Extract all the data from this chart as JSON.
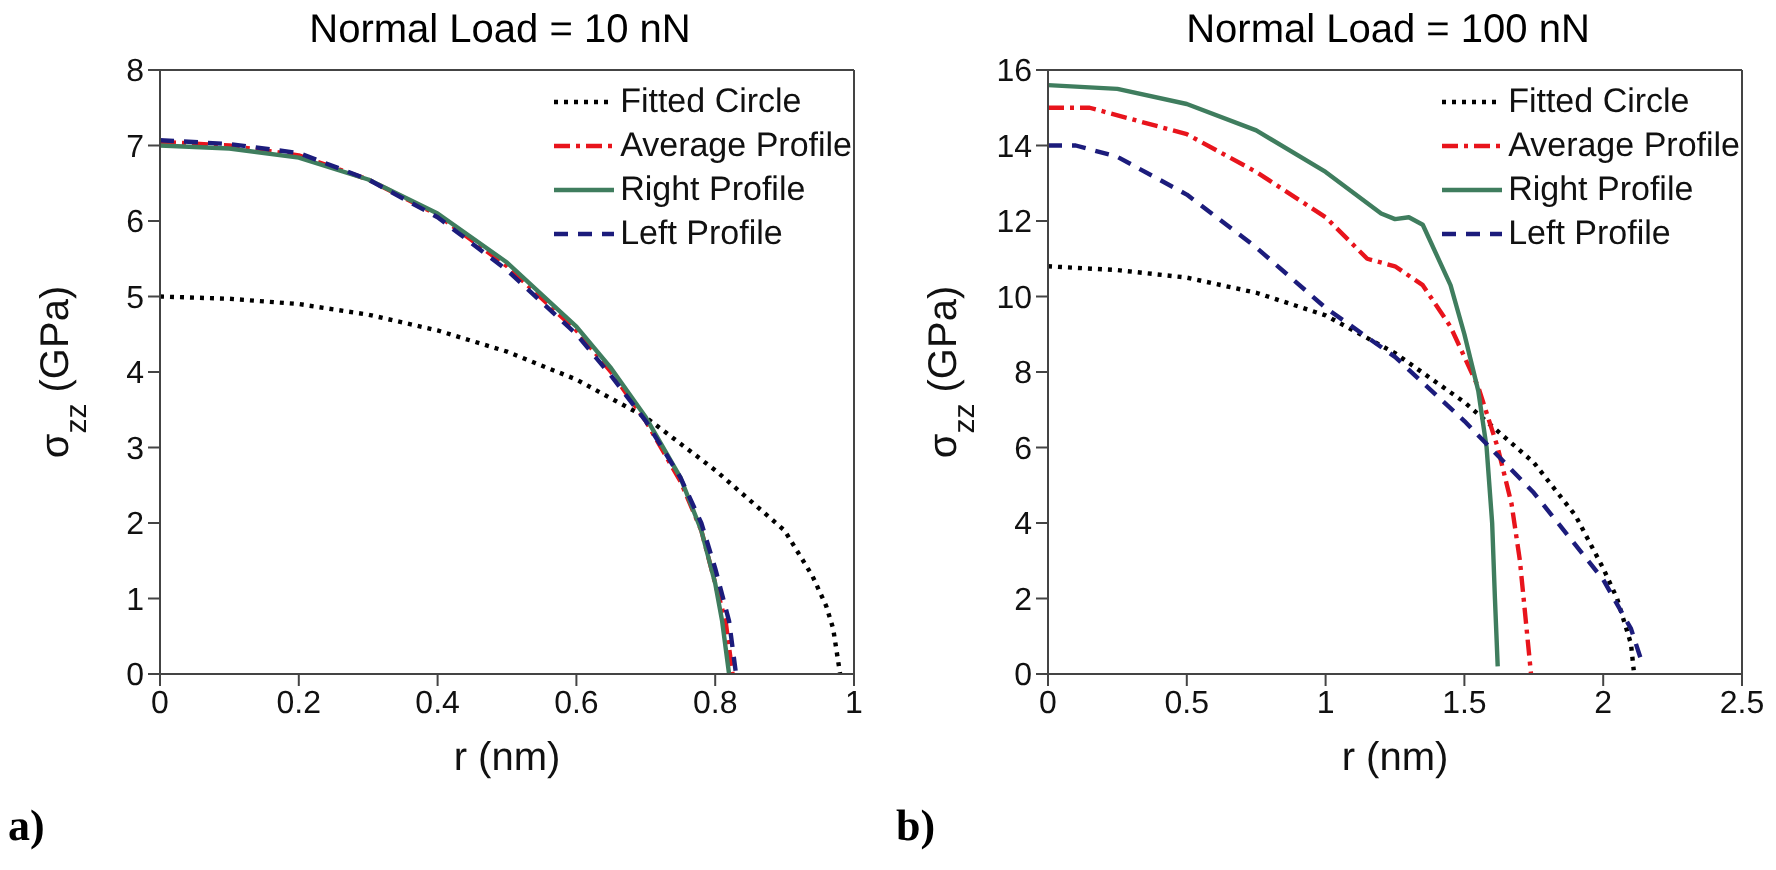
{
  "chart_data": [
    {
      "type": "line",
      "title": "Normal Load = 10 nN",
      "xlabel": "r (nm)",
      "ylabel": "σ$_{zz}$ (GPa)",
      "xlim": [
        0,
        1
      ],
      "xticks": [
        0,
        0.2,
        0.4,
        0.6,
        0.8,
        1
      ],
      "ylim": [
        0,
        8
      ],
      "yticks": [
        0,
        1,
        2,
        3,
        4,
        5,
        6,
        7,
        8
      ],
      "legend": "top right",
      "marker": "none",
      "annotations": [
        "a)"
      ],
      "series": [
        {
          "name": "Fitted Circle",
          "color": "#000000",
          "line_style": "dotted",
          "x": [
            0,
            0.1,
            0.2,
            0.3,
            0.4,
            0.5,
            0.6,
            0.7,
            0.8,
            0.85,
            0.9,
            0.94,
            0.96,
            0.97,
            0.98
          ],
          "values": [
            5,
            4.97,
            4.9,
            4.76,
            4.55,
            4.27,
            3.9,
            3.4,
            2.7,
            2.3,
            1.9,
            1.3,
            0.9,
            0.6,
            0
          ]
        },
        {
          "name": "Average Profile",
          "color": "#e8141c",
          "line_style": "dashdot",
          "x": [
            0,
            0.1,
            0.2,
            0.3,
            0.4,
            0.5,
            0.6,
            0.65,
            0.7,
            0.75,
            0.78,
            0.8,
            0.815,
            0.825
          ],
          "values": [
            7.05,
            7,
            6.87,
            6.55,
            6.08,
            5.4,
            4.55,
            4.0,
            3.35,
            2.55,
            1.9,
            1.2,
            0.7,
            0
          ]
        },
        {
          "name": "Right Profile",
          "color": "#3f7d5e",
          "line_style": "solid",
          "x": [
            0,
            0.1,
            0.2,
            0.3,
            0.4,
            0.5,
            0.6,
            0.65,
            0.7,
            0.75,
            0.78,
            0.8,
            0.81,
            0.82
          ],
          "values": [
            7,
            6.96,
            6.84,
            6.55,
            6.1,
            5.45,
            4.6,
            4.05,
            3.4,
            2.6,
            1.9,
            1.2,
            0.7,
            0
          ]
        },
        {
          "name": "Left Profile",
          "color": "#1c1c7c",
          "line_style": "dashed",
          "x": [
            0,
            0.1,
            0.2,
            0.3,
            0.4,
            0.5,
            0.6,
            0.65,
            0.7,
            0.75,
            0.78,
            0.8,
            0.82,
            0.83
          ],
          "values": [
            7.07,
            7.02,
            6.9,
            6.55,
            6.05,
            5.35,
            4.5,
            3.95,
            3.35,
            2.6,
            2.0,
            1.4,
            0.7,
            0
          ]
        }
      ]
    },
    {
      "type": "line",
      "title": "Normal Load = 100 nN",
      "xlabel": "r (nm)",
      "ylabel": "σ$_{zz}$ (GPa)",
      "xlim": [
        0,
        2.5
      ],
      "xticks": [
        0,
        0.5,
        1,
        1.5,
        2,
        2.5
      ],
      "ylim": [
        0,
        16
      ],
      "yticks": [
        0,
        2,
        4,
        6,
        8,
        10,
        12,
        14,
        16
      ],
      "legend": "top right",
      "marker": "none",
      "annotations": [
        "b)"
      ],
      "series": [
        {
          "name": "Fitted Circle",
          "color": "#000000",
          "line_style": "dotted",
          "x": [
            0,
            0.25,
            0.5,
            0.75,
            1,
            1.25,
            1.5,
            1.75,
            1.9,
            2,
            2.05,
            2.1,
            2.11
          ],
          "values": [
            10.8,
            10.7,
            10.5,
            10.1,
            9.5,
            8.5,
            7.2,
            5.6,
            4.2,
            2.8,
            2,
            0.8,
            0.1
          ]
        },
        {
          "name": "Average Profile",
          "color": "#e8141c",
          "line_style": "dashdot",
          "x": [
            0,
            0.15,
            0.5,
            0.75,
            1,
            1.15,
            1.25,
            1.35,
            1.45,
            1.55,
            1.62,
            1.67,
            1.7,
            1.72,
            1.74
          ],
          "values": [
            15,
            15,
            14.3,
            13.3,
            12.1,
            11,
            10.8,
            10.3,
            9.2,
            7.6,
            6,
            4.5,
            3,
            1.5,
            0
          ]
        },
        {
          "name": "Right Profile",
          "color": "#3f7d5e",
          "line_style": "solid",
          "x": [
            0,
            0.25,
            0.5,
            0.75,
            1,
            1.2,
            1.25,
            1.3,
            1.35,
            1.45,
            1.5,
            1.55,
            1.58,
            1.6,
            1.61,
            1.62
          ],
          "values": [
            15.6,
            15.5,
            15.1,
            14.4,
            13.3,
            12.2,
            12.05,
            12.1,
            11.9,
            10.3,
            9,
            7.5,
            6,
            4,
            2,
            0.2
          ]
        },
        {
          "name": "Left Profile",
          "color": "#1c1c7c",
          "line_style": "dashed",
          "x": [
            0,
            0.1,
            0.25,
            0.5,
            0.75,
            1,
            1.25,
            1.5,
            1.75,
            2,
            2.1,
            2.14
          ],
          "values": [
            14,
            14,
            13.7,
            12.7,
            11.3,
            9.7,
            8.4,
            6.7,
            4.8,
            2.5,
            1.2,
            0.3
          ]
        }
      ]
    }
  ]
}
